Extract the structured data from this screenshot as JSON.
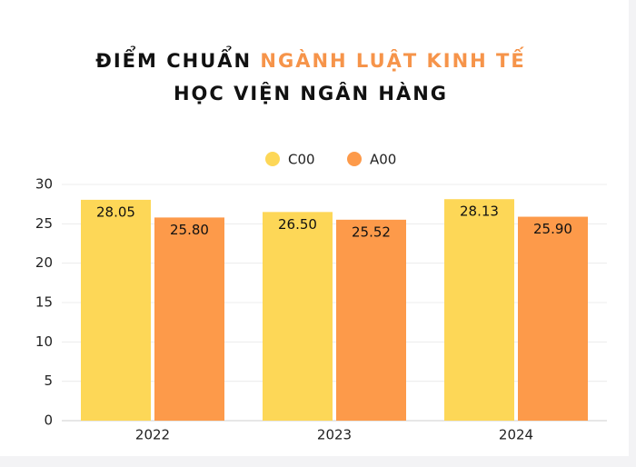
{
  "chart_data": {
    "type": "bar",
    "title": [
      "ĐIỂM CHUẨN",
      "NGÀNH LUẬT KINH TẾ",
      "HỌC VIỆN NGÂN HÀNG"
    ],
    "title_colors": [
      "#111111",
      "#f6944a",
      "#111111"
    ],
    "categories": [
      "2022",
      "2023",
      "2024"
    ],
    "series": [
      {
        "name": "C00",
        "color": "#fdd757",
        "values": [
          28.05,
          26.5,
          28.13
        ],
        "value_labels": [
          "28.05",
          "26.50",
          "28.13"
        ]
      },
      {
        "name": "A00",
        "color": "#fd9a4a",
        "values": [
          25.8,
          25.52,
          25.9
        ],
        "value_labels": [
          "25.80",
          "25.52",
          "25.90"
        ]
      }
    ],
    "ylim": [
      0,
      30
    ],
    "yticks": [
      0,
      5,
      10,
      15,
      20,
      25,
      30
    ],
    "grid": true,
    "legend": "top"
  }
}
